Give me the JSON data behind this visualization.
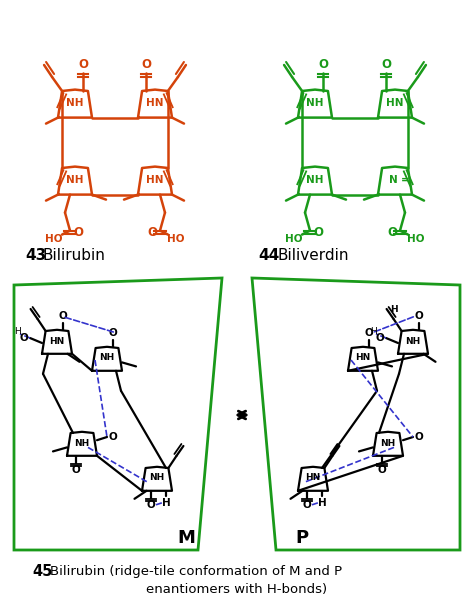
{
  "background_color": "#ffffff",
  "fig_width": 4.74,
  "fig_height": 6.11,
  "dpi": 100,
  "bilirubin_color": "#d4430a",
  "biliverdin_color": "#1a9a1a",
  "structure_color": "#000000",
  "hbond_color": "#3333cc",
  "green_outline_color": "#1a9a1a",
  "label_43": "43",
  "label_43_name": "Bilirubin",
  "label_44": "44",
  "label_44_name": "Biliverdin",
  "label_45": "45",
  "label_45_line1": "Bilirubin (ridge-tile conformation of M and P",
  "label_45_line2": "enantiomers with H-bonds)",
  "label_M": "M",
  "label_P": "P"
}
